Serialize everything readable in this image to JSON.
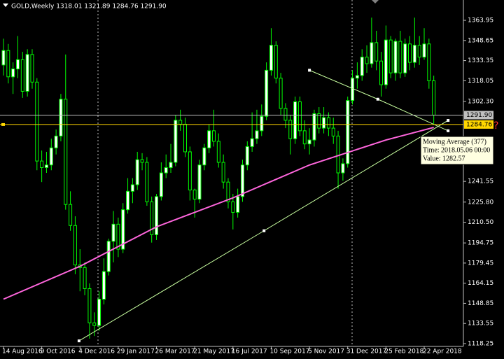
{
  "chart_data": {
    "type": "candlestick",
    "header": "GOLD,Weekly  1318.01 1321.89 1284.76 1291.90",
    "categories": [
      "14 Aug 2016",
      null,
      null,
      null,
      null,
      null,
      null,
      null,
      "9 Oct 2016",
      null,
      null,
      null,
      null,
      null,
      null,
      null,
      "4 Dec 2016",
      null,
      null,
      null,
      null,
      null,
      null,
      null,
      "29 Jan 2017",
      null,
      null,
      null,
      null,
      null,
      null,
      null,
      "26 Mar 2017",
      null,
      null,
      null,
      null,
      null,
      null,
      null,
      "21 May 2017",
      null,
      null,
      null,
      null,
      null,
      null,
      null,
      "16 Jul 2017",
      null,
      null,
      null,
      null,
      null,
      null,
      null,
      "10 Sep 2017",
      null,
      null,
      null,
      null,
      null,
      null,
      null,
      "5 Nov 2017",
      null,
      null,
      null,
      null,
      null,
      null,
      null,
      "31 Dec 2017",
      null,
      null,
      null,
      null,
      null,
      null,
      null,
      "25 Feb 2018",
      null,
      null,
      null,
      null,
      null,
      null,
      null,
      "22 Apr 2018",
      null,
      null
    ],
    "open": [
      1330,
      1341,
      1321,
      1327,
      1334,
      1310,
      1338,
      1317,
      1257,
      1252,
      1254,
      1267,
      1276,
      1304,
      1224,
      1208,
      1178,
      1176,
      1160,
      1134,
      1132,
      1152,
      1173,
      1196,
      1209,
      1190,
      1220,
      1234,
      1239,
      1258,
      1256,
      1226,
      1201,
      1230,
      1248,
      1252,
      1256,
      1288,
      1285,
      1264,
      1235,
      1228,
      1254,
      1267,
      1280,
      1272,
      1256,
      1241,
      1226,
      1218,
      1230,
      1254,
      1268,
      1274,
      1280,
      1291,
      1326,
      1345,
      1320,
      1297,
      1288,
      1274,
      1302,
      1280,
      1270,
      1273,
      1293,
      1282,
      1290,
      1282,
      1276,
      1248,
      1255,
      1303,
      1320,
      1322,
      1336,
      1331,
      1347,
      1333,
      1315,
      1349,
      1324,
      1348,
      1324,
      1346,
      1332,
      1345,
      1336,
      1346,
      1318.01
    ],
    "high": [
      1350,
      1346,
      1332,
      1352,
      1340,
      1342,
      1342,
      1320,
      1265,
      1264,
      1274,
      1281,
      1308,
      1338,
      1234,
      1215,
      1190,
      1180,
      1164,
      1142,
      1158,
      1183,
      1198,
      1219,
      1214,
      1225,
      1244,
      1244,
      1264,
      1263,
      1260,
      1230,
      1232,
      1256,
      1262,
      1270,
      1292,
      1296,
      1290,
      1268,
      1236,
      1258,
      1270,
      1285,
      1296,
      1278,
      1262,
      1244,
      1232,
      1236,
      1258,
      1272,
      1294,
      1296,
      1300,
      1332,
      1358,
      1348,
      1324,
      1301,
      1292,
      1306,
      1306,
      1288,
      1282,
      1296,
      1298,
      1298,
      1294,
      1290,
      1280,
      1259,
      1306,
      1326,
      1332,
      1342,
      1345,
      1366,
      1356,
      1340,
      1360,
      1352,
      1350,
      1356,
      1350,
      1352,
      1366,
      1352,
      1358,
      1350,
      1321.89
    ],
    "low": [
      1322,
      1316,
      1308,
      1320,
      1305,
      1306,
      1312,
      1250,
      1241,
      1248,
      1250,
      1262,
      1272,
      1220,
      1204,
      1171,
      1158,
      1155,
      1122,
      1124,
      1128,
      1148,
      1170,
      1180,
      1184,
      1187,
      1217,
      1225,
      1235,
      1250,
      1223,
      1195,
      1197,
      1227,
      1244,
      1248,
      1253,
      1280,
      1260,
      1227,
      1214,
      1225,
      1250,
      1263,
      1268,
      1252,
      1236,
      1221,
      1205,
      1214,
      1226,
      1250,
      1264,
      1270,
      1276,
      1288,
      1322,
      1316,
      1292,
      1282,
      1262,
      1270,
      1276,
      1266,
      1262,
      1268,
      1278,
      1278,
      1276,
      1270,
      1236,
      1242,
      1252,
      1300,
      1312,
      1318,
      1324,
      1328,
      1326,
      1306,
      1312,
      1320,
      1318,
      1320,
      1321,
      1326,
      1328,
      1330,
      1334,
      1312,
      1284.76
    ],
    "close": [
      1341,
      1321,
      1327,
      1334,
      1310,
      1338,
      1317,
      1257,
      1252,
      1254,
      1267,
      1276,
      1304,
      1224,
      1208,
      1178,
      1176,
      1160,
      1134,
      1132,
      1152,
      1173,
      1196,
      1209,
      1190,
      1220,
      1234,
      1239,
      1258,
      1256,
      1226,
      1201,
      1230,
      1248,
      1252,
      1256,
      1288,
      1285,
      1264,
      1235,
      1228,
      1254,
      1267,
      1280,
      1272,
      1256,
      1241,
      1226,
      1218,
      1230,
      1254,
      1268,
      1274,
      1280,
      1291,
      1326,
      1345,
      1320,
      1297,
      1288,
      1274,
      1302,
      1280,
      1270,
      1273,
      1293,
      1282,
      1290,
      1282,
      1276,
      1248,
      1255,
      1303,
      1320,
      1322,
      1336,
      1331,
      1347,
      1333,
      1315,
      1349,
      1324,
      1348,
      1324,
      1346,
      1332,
      1345,
      1336,
      1346,
      1318,
      1291.9
    ],
    "up_color": "#ffffff",
    "down_color": "#000000",
    "wick_color": "#00ff00",
    "xlim": [
      -0.73,
      96.2
    ],
    "ylim": [
      1116.1,
      1379.4
    ],
    "yticks": [
      1363.95,
      1348.65,
      1333.35,
      {
        "value": 1318.05,
        "label": "1318.05"
      },
      {
        "value": 1302.3,
        "label": "1302.30"
      },
      1241.55,
      {
        "value": 1225.8,
        "label": "1225.80"
      },
      {
        "value": 1210.5,
        "label": "1210.50"
      },
      1194.75,
      1179.45,
      1164.15,
      1148.85,
      1133.55,
      1118.25
    ],
    "moving_average": {
      "color": "#ff66dd",
      "x": [
        0,
        16,
        32,
        48,
        64,
        80,
        90
      ],
      "values": [
        1152,
        1177,
        1207,
        1229,
        1254,
        1273,
        1282.57
      ]
    },
    "trendlines": [
      {
        "color": "#c8ffa0",
        "x": [
          64,
          78.3,
          93
        ],
        "values": [
          1326,
          1304,
          1280
        ]
      },
      {
        "color": "#c8ffa0",
        "x": [
          15.8,
          54.5,
          93
        ],
        "values": [
          1120.3,
          1204,
          1287.9
        ]
      }
    ],
    "price_lines": [
      {
        "value": 1291.9,
        "label": "1291.90",
        "color": "#c0c0c0"
      },
      {
        "value": 1284.76,
        "label": "1284.76",
        "color": "#ffd700"
      }
    ],
    "tooltip": [
      "Moving Average (377)",
      "Time: 2018.05.06 00:00",
      "Value: 1282.57"
    ],
    "marker": "?"
  }
}
